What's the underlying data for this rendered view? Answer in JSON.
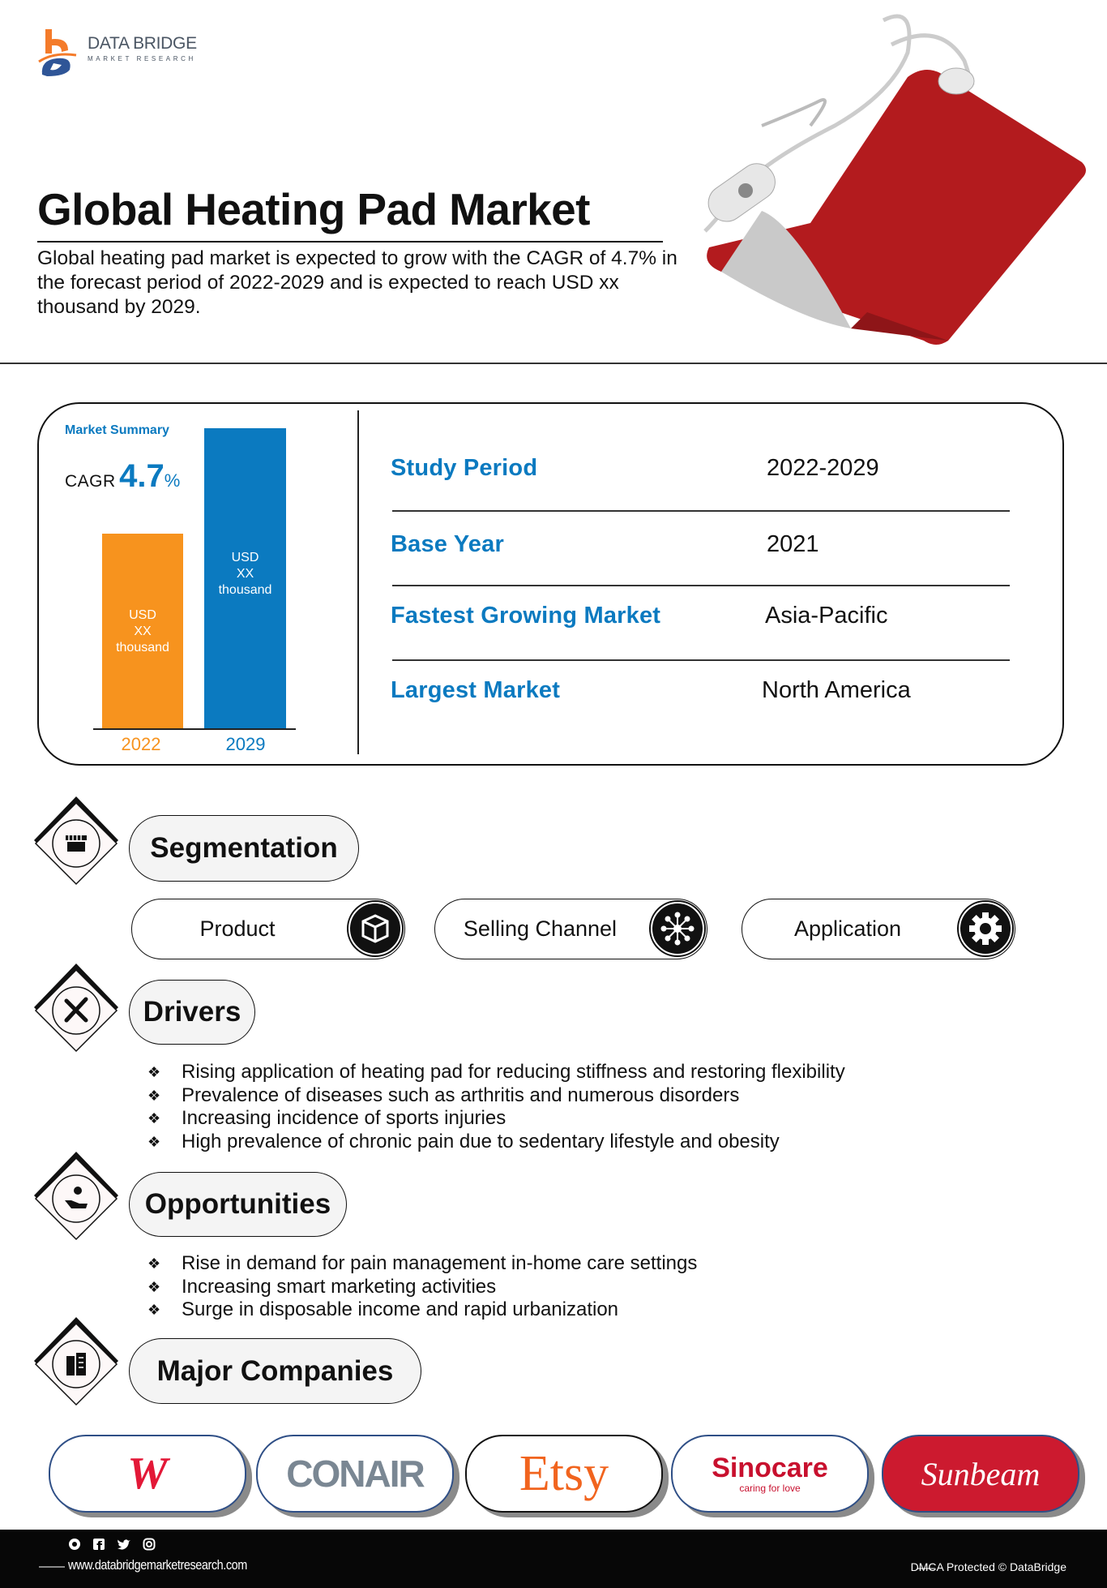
{
  "header": {
    "logo": {
      "brand": "DATA BRIDGE",
      "tagline": "MARKET RESEARCH"
    },
    "title": "Global Heating Pad Market",
    "intro": "Global heating pad market is expected to grow with the CAGR of 4.7% in the forecast period of 2022-2029 and is expected to reach USD xx thousand by 2029."
  },
  "summary": {
    "title": "Market Summary",
    "cagr_label": "CAGR",
    "cagr_value": "4.7",
    "cagr_unit": "%",
    "colors": {
      "2022": "#f7931e",
      "2029": "#0b7ac0",
      "accent": "#0b7ac0"
    },
    "bars": [
      {
        "year": "2022",
        "line1": "USD",
        "line2": "XX",
        "line3": "thousand"
      },
      {
        "year": "2029",
        "line1": "USD",
        "line2": "XX",
        "line3": "thousand"
      }
    ],
    "rows": [
      {
        "label": "Study Period",
        "value": "2022-2029"
      },
      {
        "label": "Base Year",
        "value": "2021"
      },
      {
        "label": "Fastest Growing Market",
        "value": "Asia-Pacific"
      },
      {
        "label": "Largest Market",
        "value": "North America"
      }
    ]
  },
  "segmentation": {
    "title": "Segmentation",
    "icon": "storefront-icon",
    "items": [
      {
        "label": "Product",
        "icon": "box-icon"
      },
      {
        "label": "Selling Channel",
        "icon": "network-icon"
      },
      {
        "label": "Application",
        "icon": "gear-icon"
      }
    ]
  },
  "drivers": {
    "title": "Drivers",
    "icon": "tools-icon",
    "items": [
      "Rising application of heating pad for reducing stiffness and restoring flexibility",
      "Prevalence of diseases such as arthritis and numerous disorders",
      "Increasing incidence of sports injuries",
      "High prevalence of chronic pain due to sedentary lifestyle and obesity"
    ]
  },
  "opportunities": {
    "title": "Opportunities",
    "icon": "hand-coin-icon",
    "items": [
      "Rise in demand for pain management in-home care settings",
      "Increasing smart marketing activities",
      "Surge in disposable income and rapid urbanization"
    ]
  },
  "companies": {
    "title": "Major Companies",
    "icon": "buildings-icon",
    "logos": [
      "W",
      "CONAIR",
      "Etsy",
      "Sinocare",
      "caring for love",
      "Sunbeam"
    ]
  },
  "footer": {
    "url": "www.databridgemarketresearch.com",
    "dmca": "DMCA Protected © DataBridge",
    "social": [
      "whatsapp-icon",
      "facebook-icon",
      "twitter-icon",
      "instagram-icon"
    ]
  }
}
